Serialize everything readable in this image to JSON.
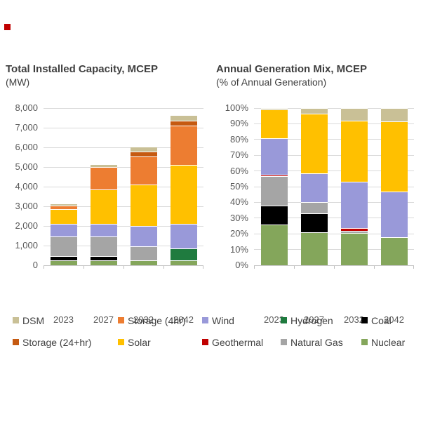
{
  "page": {
    "marker_color": "#c00000"
  },
  "chart_data": [
    {
      "type": "stacked-bar",
      "title": "Total Installed Capacity, MCEP",
      "subtitle": "(MW)",
      "xlabel": "",
      "ylabel": "MW",
      "categories": [
        "2023",
        "2027",
        "2032",
        "2042"
      ],
      "ylim": [
        0,
        8000
      ],
      "y_ticks": [
        "0",
        "1,000",
        "2,000",
        "3,000",
        "4,000",
        "5,000",
        "6,000",
        "7,000",
        "8,000"
      ],
      "grid": true,
      "series": [
        {
          "name": "Nuclear",
          "color": "#84a65b",
          "values": [
            250,
            250,
            250,
            250
          ]
        },
        {
          "name": "Coal",
          "color": "#000000",
          "values": [
            200,
            200,
            0,
            0
          ]
        },
        {
          "name": "Natural Gas",
          "color": "#a5a5a5",
          "values": [
            1000,
            1000,
            700,
            0
          ]
        },
        {
          "name": "Hydrogen",
          "color": "#1f7b3f",
          "values": [
            0,
            0,
            0,
            600
          ]
        },
        {
          "name": "Geothermal",
          "color": "#c00000",
          "values": [
            0,
            0,
            0,
            0
          ]
        },
        {
          "name": "Wind",
          "color": "#9999d9",
          "values": [
            650,
            650,
            1050,
            1250
          ]
        },
        {
          "name": "Solar",
          "color": "#ffc000",
          "values": [
            750,
            1750,
            2100,
            3000
          ]
        },
        {
          "name": "Storage (4hr)",
          "color": "#ed7d31",
          "values": [
            200,
            1150,
            1450,
            2000
          ]
        },
        {
          "name": "Storage (24+hr)",
          "color": "#c55a11",
          "values": [
            0,
            0,
            250,
            250
          ]
        },
        {
          "name": "DSM",
          "color": "#c9c096",
          "values": [
            100,
            150,
            250,
            300
          ]
        }
      ],
      "totals": [
        3150,
        5150,
        6050,
        7650
      ]
    },
    {
      "type": "stacked-bar",
      "title": "Annual Generation Mix, MCEP",
      "subtitle": "(% of Annual Generation)",
      "xlabel": "",
      "ylabel": "% of Annual Generation",
      "categories": [
        "2023",
        "2027",
        "2032",
        "2042"
      ],
      "ylim": [
        0,
        100
      ],
      "y_ticks": [
        "0%",
        "10%",
        "20%",
        "30%",
        "40%",
        "50%",
        "60%",
        "70%",
        "80%",
        "90%",
        "100%"
      ],
      "grid": true,
      "series": [
        {
          "name": "Nuclear",
          "color": "#84a65b",
          "values": [
            26,
            21,
            20.5,
            18
          ]
        },
        {
          "name": "Coal",
          "color": "#000000",
          "values": [
            12,
            12,
            0,
            0
          ]
        },
        {
          "name": "Natural Gas",
          "color": "#a5a5a5",
          "values": [
            18.5,
            7,
            1.5,
            0
          ]
        },
        {
          "name": "Geothermal",
          "color": "#c00000",
          "values": [
            1,
            0,
            1.5,
            0
          ]
        },
        {
          "name": "Wind",
          "color": "#9999d9",
          "values": [
            23.5,
            18.5,
            29.5,
            29
          ]
        },
        {
          "name": "Solar",
          "color": "#ffc000",
          "values": [
            18,
            38,
            39,
            44.5
          ]
        },
        {
          "name": "DSM",
          "color": "#c9c096",
          "values": [
            1,
            3.5,
            8,
            8.5
          ]
        }
      ]
    }
  ],
  "legend": {
    "rows": [
      [
        {
          "label": "DSM",
          "color": "#c9c096"
        },
        {
          "label": "Storage (4hr)",
          "color": "#ed7d31"
        },
        {
          "label": "Wind",
          "color": "#9999d9"
        },
        {
          "label": "Hydrogen",
          "color": "#1f7b3f"
        },
        {
          "label": "Coal",
          "color": "#000000"
        }
      ],
      [
        {
          "label": "Storage (24+hr)",
          "color": "#c55a11"
        },
        {
          "label": "Solar",
          "color": "#ffc000"
        },
        {
          "label": "Geothermal",
          "color": "#c00000"
        },
        {
          "label": "Natural Gas",
          "color": "#a5a5a5"
        },
        {
          "label": "Nuclear",
          "color": "#84a65b"
        }
      ]
    ]
  }
}
